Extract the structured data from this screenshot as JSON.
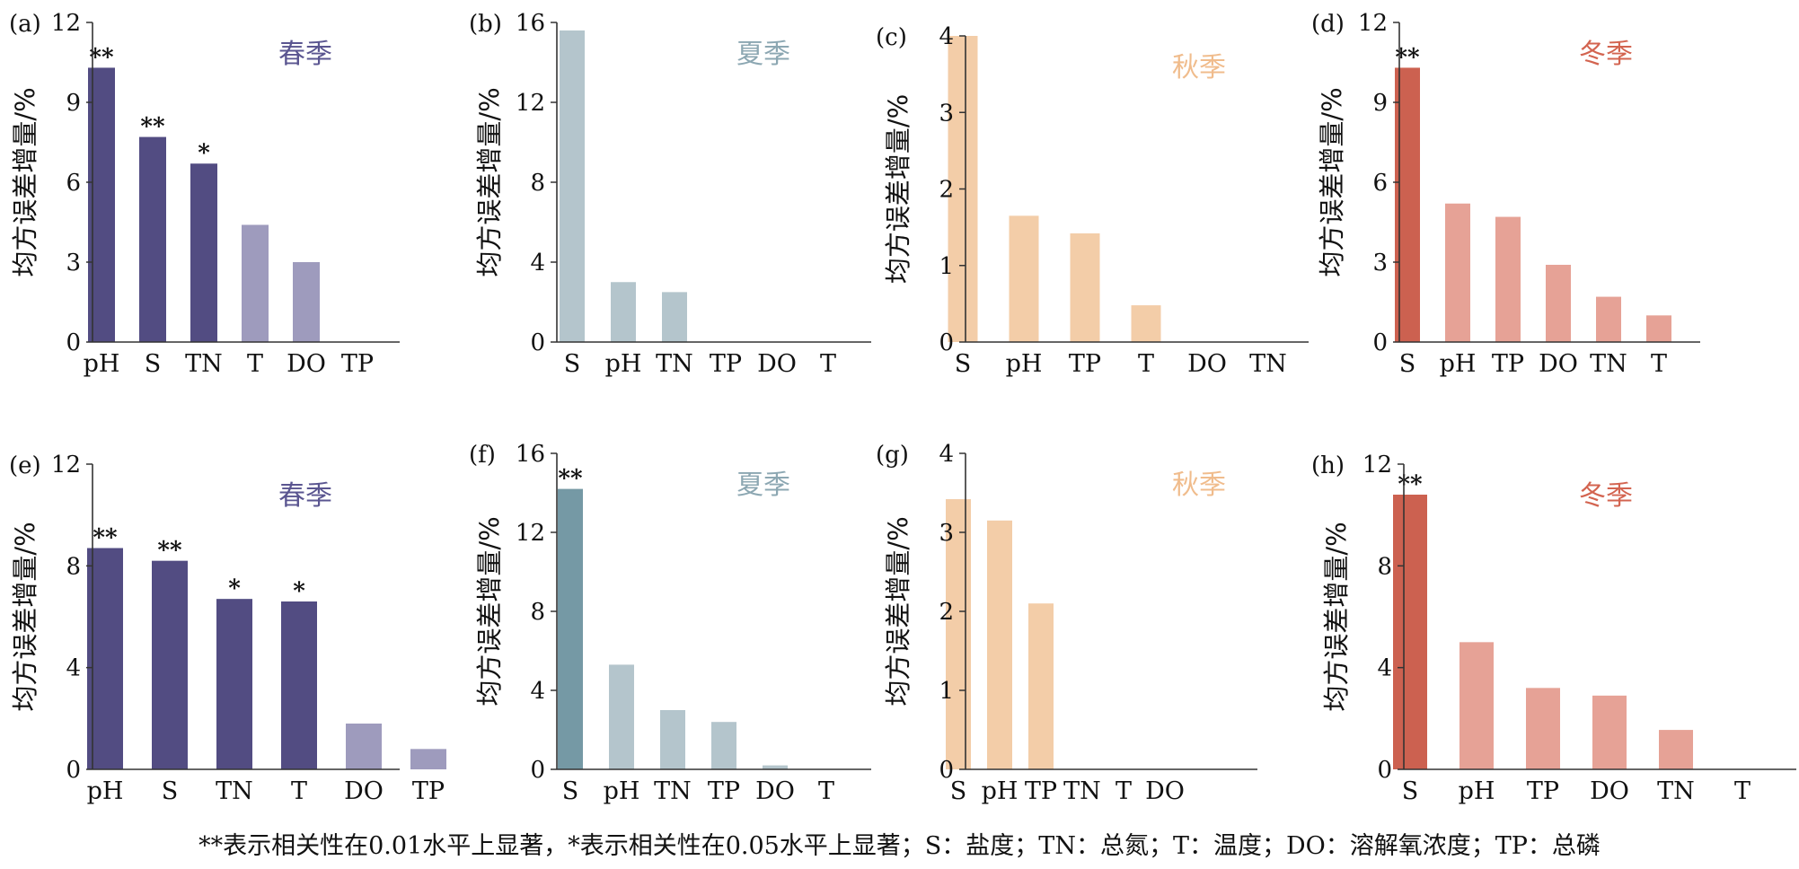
{
  "chart_data": [
    {
      "type": "bar",
      "panel_label": "(a)",
      "season": "春季",
      "title_color": "#5a5590",
      "ylabel": "均方误差增量/%",
      "ylim": [
        0,
        12
      ],
      "yticks": [
        0,
        3,
        6,
        9,
        12
      ],
      "categories": [
        "pH",
        "S",
        "TN",
        "T",
        "DO",
        "TP"
      ],
      "values": [
        10.3,
        7.7,
        6.7,
        4.4,
        3.0,
        0
      ],
      "significance": [
        "**",
        "**",
        "*",
        "",
        "",
        ""
      ],
      "colors": [
        "#524c82",
        "#524c82",
        "#524c82",
        "#9e9bbd",
        "#9e9bbd",
        "#9e9bbd"
      ]
    },
    {
      "type": "bar",
      "panel_label": "(b)",
      "season": "夏季",
      "title_color": "#8ca7b2",
      "ylabel": "均方误差增量/%",
      "ylim": [
        0,
        16
      ],
      "yticks": [
        0,
        4,
        8,
        12,
        16
      ],
      "categories": [
        "S",
        "pH",
        "TN",
        "TP",
        "DO",
        "T"
      ],
      "values": [
        15.6,
        3.0,
        2.5,
        0,
        0,
        0
      ],
      "significance": [
        "",
        "",
        "",
        "",
        "",
        ""
      ],
      "colors": [
        "#b4c5cc",
        "#b4c5cc",
        "#b4c5cc",
        "#b4c5cc",
        "#b4c5cc",
        "#b4c5cc"
      ]
    },
    {
      "type": "bar",
      "panel_label": "(c)",
      "season": "秋季",
      "title_color": "#f0bc8c",
      "ylabel": "均方误差增量/%",
      "ylim": [
        0,
        4
      ],
      "yticks": [
        0,
        1,
        2,
        3,
        4
      ],
      "categories": [
        "S",
        "pH",
        "TP",
        "T",
        "DO",
        "TN"
      ],
      "values": [
        4.0,
        1.65,
        1.42,
        0.48,
        0,
        0
      ],
      "significance": [
        "",
        "",
        "",
        "",
        "",
        ""
      ],
      "colors": [
        "#f3cda8",
        "#f3cda8",
        "#f3cda8",
        "#f3cda8",
        "#f3cda8",
        "#f3cda8"
      ]
    },
    {
      "type": "bar",
      "panel_label": "(d)",
      "season": "冬季",
      "title_color": "#d36450",
      "ylabel": "均方误差增量/%",
      "ylim": [
        0,
        12
      ],
      "yticks": [
        0,
        3,
        6,
        9,
        12
      ],
      "categories": [
        "S",
        "pH",
        "TP",
        "DO",
        "TN",
        "T"
      ],
      "values": [
        10.3,
        5.2,
        4.7,
        2.9,
        1.7,
        1.0
      ],
      "significance": [
        "**",
        "",
        "",
        "",
        "",
        ""
      ],
      "colors": [
        "#cc6150",
        "#e6a296",
        "#e6a296",
        "#e6a296",
        "#e6a296",
        "#e6a296"
      ]
    },
    {
      "type": "bar",
      "panel_label": "(e)",
      "season": "春季",
      "title_color": "#5a5590",
      "ylabel": "均方误差增量/%",
      "ylim": [
        0,
        12
      ],
      "yticks": [
        0,
        4,
        8,
        12
      ],
      "categories": [
        "pH",
        "S",
        "TN",
        "T",
        "DO",
        "TP"
      ],
      "values": [
        8.7,
        8.2,
        6.7,
        6.6,
        1.8,
        0.8
      ],
      "significance": [
        "**",
        "**",
        "*",
        "*",
        "",
        ""
      ],
      "colors": [
        "#524c82",
        "#524c82",
        "#524c82",
        "#524c82",
        "#9e9bbd",
        "#9e9bbd"
      ]
    },
    {
      "type": "bar",
      "panel_label": "(f)",
      "season": "夏季",
      "title_color": "#8ca7b2",
      "ylabel": "均方误差增量/%",
      "ylim": [
        0,
        16
      ],
      "yticks": [
        0,
        4,
        8,
        12,
        16
      ],
      "categories": [
        "S",
        "pH",
        "TN",
        "TP",
        "DO",
        "T"
      ],
      "values": [
        14.2,
        5.3,
        3.0,
        2.4,
        0.2,
        0
      ],
      "significance": [
        "**",
        "",
        "",
        "",
        "",
        ""
      ],
      "colors": [
        "#7599a5",
        "#b4c5cc",
        "#b4c5cc",
        "#b4c5cc",
        "#b4c5cc",
        "#b4c5cc"
      ]
    },
    {
      "type": "bar",
      "panel_label": "(g)",
      "season": "秋季",
      "title_color": "#f0bc8c",
      "ylabel": "均方误差增量/%",
      "ylim": [
        0,
        4
      ],
      "yticks": [
        0,
        1,
        2,
        3,
        4
      ],
      "categories": [
        "S",
        "pH",
        "TP",
        "TN",
        "T",
        "DO"
      ],
      "values": [
        3.42,
        3.15,
        2.1,
        0,
        0,
        0
      ],
      "significance": [
        "",
        "",
        "",
        "",
        "",
        ""
      ],
      "colors": [
        "#f3cda8",
        "#f3cda8",
        "#f3cda8",
        "#f3cda8",
        "#f3cda8",
        "#f3cda8"
      ]
    },
    {
      "type": "bar",
      "panel_label": "(h)",
      "season": "冬季",
      "title_color": "#d36450",
      "ylabel": "均方误差增量/%",
      "ylim": [
        0,
        12
      ],
      "yticks": [
        0,
        4,
        8,
        12
      ],
      "categories": [
        "S",
        "pH",
        "TP",
        "DO",
        "TN",
        "T"
      ],
      "values": [
        10.8,
        5.0,
        3.2,
        2.9,
        1.55,
        0
      ],
      "significance": [
        "**",
        "",
        "",
        "",
        "",
        ""
      ],
      "colors": [
        "#cc6150",
        "#e6a296",
        "#e6a296",
        "#e6a296",
        "#e6a296",
        "#e6a296"
      ]
    }
  ],
  "footnote": "**表示相关性在0.01水平上显著，*表示相关性在0.05水平上显著；S：盐度；TN：总氮；T：温度；DO：溶解氧浓度；TP：总磷"
}
